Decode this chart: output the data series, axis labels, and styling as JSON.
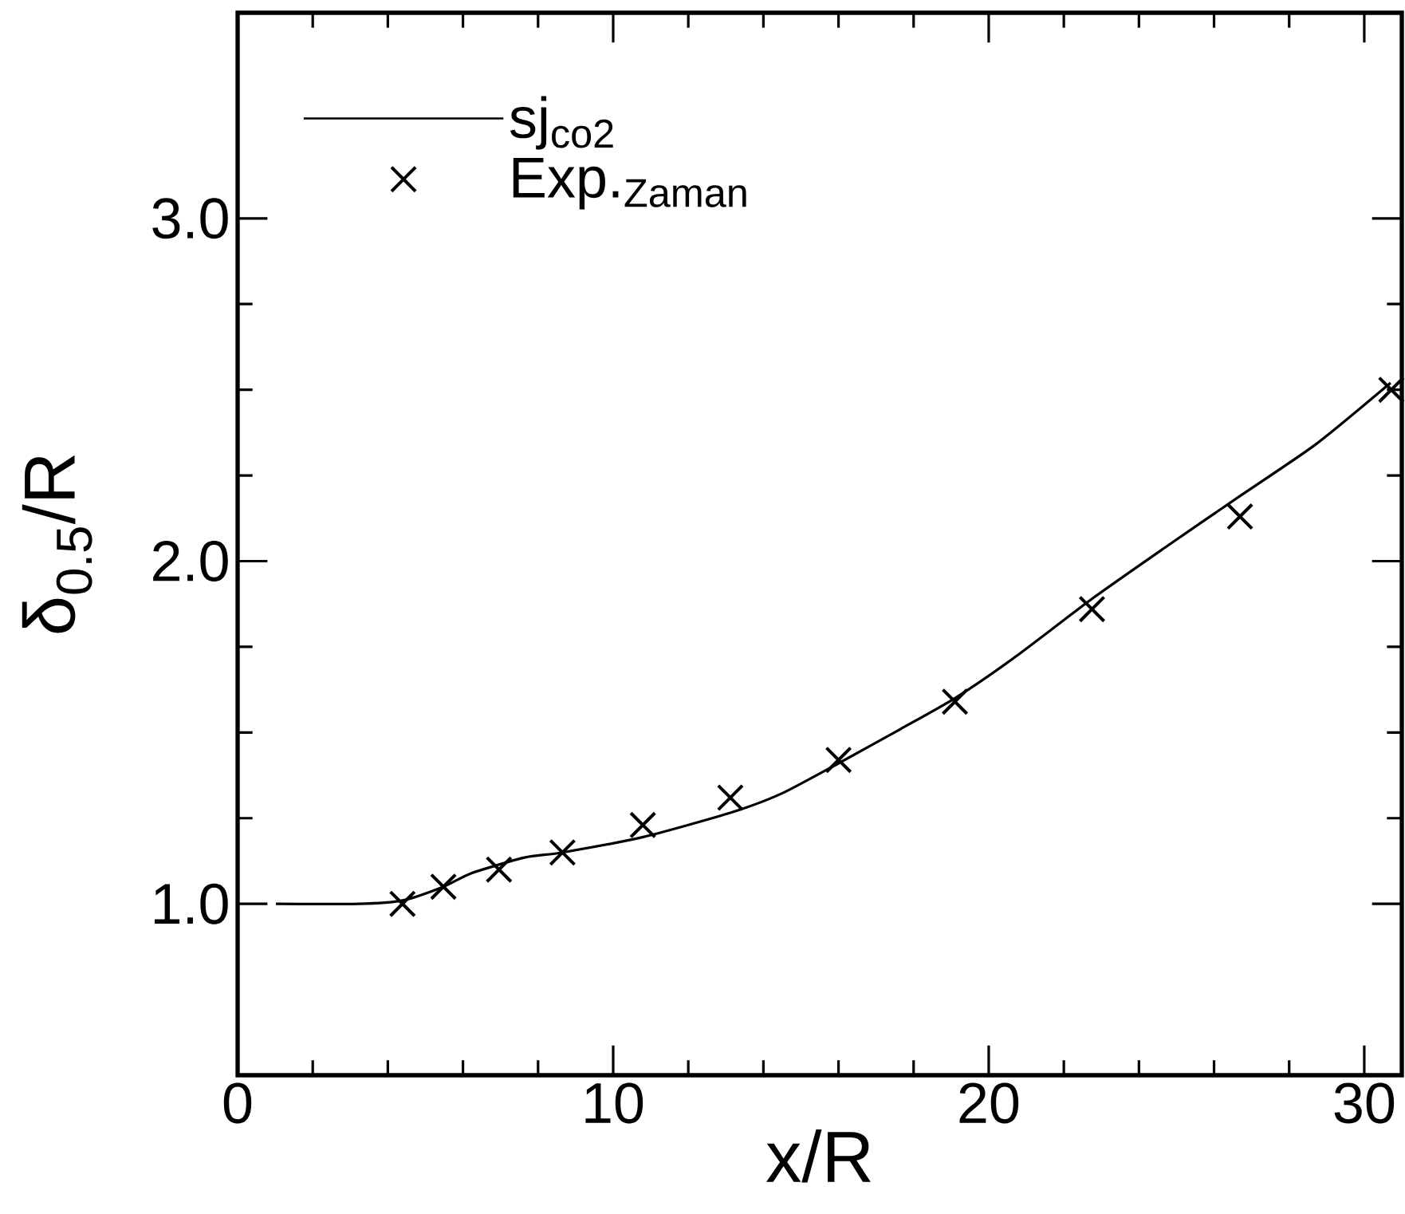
{
  "chart_data": {
    "type": "line",
    "xlabel": "x/R",
    "ylabel": "δ$_{0.5}$/R",
    "xlim": [
      0,
      31
    ],
    "ylim": [
      0.5,
      3.6
    ],
    "xticks": [
      0,
      10,
      20,
      30
    ],
    "yticks": [
      {
        "value": 1,
        "label": "1.0"
      },
      {
        "value": 2,
        "label": "2.0"
      },
      {
        "value": 3,
        "label": "3.0"
      }
    ],
    "legend": "top left",
    "grid": false,
    "series": [
      {
        "name": "sj$_{co2}$",
        "color": "#000000",
        "marker": "none",
        "line_style": "solid",
        "x": [
          1.02,
          3.24,
          4.39,
          5.48,
          6.24,
          7.64,
          8.65,
          10.8,
          13.1,
          14.45,
          16.0,
          17.65,
          19.1,
          20.7,
          22.75,
          24.7,
          26.69,
          28.7,
          30.7
        ],
        "values": [
          1.0,
          1.0,
          1.01,
          1.05,
          1.09,
          1.135,
          1.15,
          1.195,
          1.265,
          1.32,
          1.41,
          1.51,
          1.6,
          1.72,
          1.89,
          2.04,
          2.19,
          2.34,
          2.52
        ]
      },
      {
        "name": "Exp.$_{Zaman}$",
        "type": "scatter",
        "color": "#000000",
        "marker": "cross",
        "x": [
          4.39,
          5.48,
          6.96,
          8.65,
          10.79,
          13.12,
          16.0,
          19.1,
          22.75,
          26.69,
          30.72
        ],
        "values": [
          1.0,
          1.05,
          1.1,
          1.15,
          1.23,
          1.31,
          1.42,
          1.59,
          1.86,
          2.13,
          2.5
        ]
      }
    ]
  }
}
